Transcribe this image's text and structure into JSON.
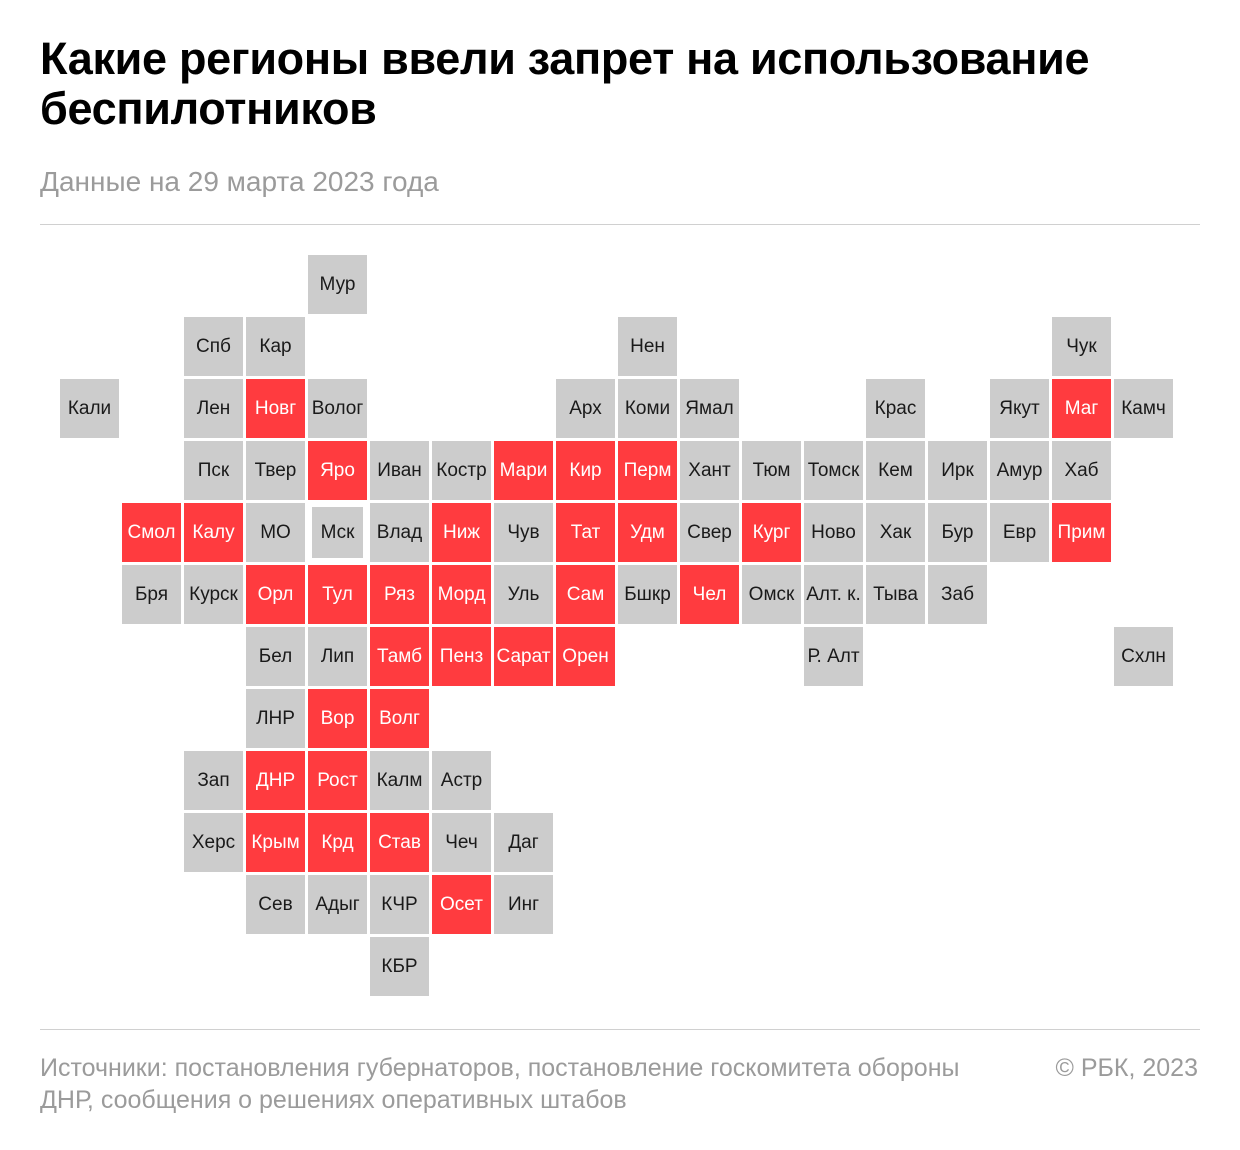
{
  "title": "Какие регионы ввели запрет на использование беспилотников",
  "subtitle": "Данные на 29 марта 2023 года",
  "colors": {
    "ban": "#ff3b3f",
    "no_ban": "#cccccc"
  },
  "tiles": [
    {
      "label": "Мур",
      "ban": false,
      "row": 0,
      "col": 4
    },
    {
      "label": "Спб",
      "ban": false,
      "row": 1,
      "col": 2
    },
    {
      "label": "Кар",
      "ban": false,
      "row": 1,
      "col": 3
    },
    {
      "label": "Нен",
      "ban": false,
      "row": 1,
      "col": 9
    },
    {
      "label": "Чук",
      "ban": false,
      "row": 1,
      "col": 16
    },
    {
      "label": "Кали",
      "ban": false,
      "row": 2,
      "col": 0
    },
    {
      "label": "Лен",
      "ban": false,
      "row": 2,
      "col": 2
    },
    {
      "label": "Новг",
      "ban": true,
      "row": 2,
      "col": 3
    },
    {
      "label": "Волог",
      "ban": false,
      "row": 2,
      "col": 4
    },
    {
      "label": "Арх",
      "ban": false,
      "row": 2,
      "col": 8
    },
    {
      "label": "Коми",
      "ban": false,
      "row": 2,
      "col": 9
    },
    {
      "label": "Ямал",
      "ban": false,
      "row": 2,
      "col": 10
    },
    {
      "label": "Крас",
      "ban": false,
      "row": 2,
      "col": 13
    },
    {
      "label": "Якут",
      "ban": false,
      "row": 2,
      "col": 15
    },
    {
      "label": "Маг",
      "ban": true,
      "row": 2,
      "col": 16
    },
    {
      "label": "Камч",
      "ban": false,
      "row": 2,
      "col": 17
    },
    {
      "label": "Пск",
      "ban": false,
      "row": 3,
      "col": 2
    },
    {
      "label": "Твер",
      "ban": false,
      "row": 3,
      "col": 3
    },
    {
      "label": "Яро",
      "ban": true,
      "row": 3,
      "col": 4
    },
    {
      "label": "Иван",
      "ban": false,
      "row": 3,
      "col": 5
    },
    {
      "label": "Костр",
      "ban": false,
      "row": 3,
      "col": 6
    },
    {
      "label": "Мари",
      "ban": true,
      "row": 3,
      "col": 7
    },
    {
      "label": "Кир",
      "ban": true,
      "row": 3,
      "col": 8
    },
    {
      "label": "Перм",
      "ban": true,
      "row": 3,
      "col": 9
    },
    {
      "label": "Хант",
      "ban": false,
      "row": 3,
      "col": 10
    },
    {
      "label": "Тюм",
      "ban": false,
      "row": 3,
      "col": 11
    },
    {
      "label": "Томск",
      "ban": false,
      "row": 3,
      "col": 12
    },
    {
      "label": "Кем",
      "ban": false,
      "row": 3,
      "col": 13
    },
    {
      "label": "Ирк",
      "ban": false,
      "row": 3,
      "col": 14
    },
    {
      "label": "Амур",
      "ban": false,
      "row": 3,
      "col": 15
    },
    {
      "label": "Хаб",
      "ban": false,
      "row": 3,
      "col": 16
    },
    {
      "label": "Смол",
      "ban": true,
      "row": 4,
      "col": 1
    },
    {
      "label": "Калу",
      "ban": true,
      "row": 4,
      "col": 2
    },
    {
      "label": "МО",
      "ban": false,
      "row": 4,
      "col": 3
    },
    {
      "label": "Мск",
      "ban": false,
      "row": 4,
      "col": 4,
      "small": true
    },
    {
      "label": "Влад",
      "ban": false,
      "row": 4,
      "col": 5
    },
    {
      "label": "Ниж",
      "ban": true,
      "row": 4,
      "col": 6
    },
    {
      "label": "Чув",
      "ban": false,
      "row": 4,
      "col": 7
    },
    {
      "label": "Тат",
      "ban": true,
      "row": 4,
      "col": 8
    },
    {
      "label": "Удм",
      "ban": true,
      "row": 4,
      "col": 9
    },
    {
      "label": "Свер",
      "ban": false,
      "row": 4,
      "col": 10
    },
    {
      "label": "Кург",
      "ban": true,
      "row": 4,
      "col": 11
    },
    {
      "label": "Ново",
      "ban": false,
      "row": 4,
      "col": 12
    },
    {
      "label": "Хак",
      "ban": false,
      "row": 4,
      "col": 13
    },
    {
      "label": "Бур",
      "ban": false,
      "row": 4,
      "col": 14
    },
    {
      "label": "Евр",
      "ban": false,
      "row": 4,
      "col": 15
    },
    {
      "label": "Прим",
      "ban": true,
      "row": 4,
      "col": 16
    },
    {
      "label": "Бря",
      "ban": false,
      "row": 5,
      "col": 1
    },
    {
      "label": "Курск",
      "ban": false,
      "row": 5,
      "col": 2
    },
    {
      "label": "Орл",
      "ban": true,
      "row": 5,
      "col": 3
    },
    {
      "label": "Тул",
      "ban": true,
      "row": 5,
      "col": 4
    },
    {
      "label": "Ряз",
      "ban": true,
      "row": 5,
      "col": 5
    },
    {
      "label": "Морд",
      "ban": true,
      "row": 5,
      "col": 6
    },
    {
      "label": "Уль",
      "ban": false,
      "row": 5,
      "col": 7
    },
    {
      "label": "Сам",
      "ban": true,
      "row": 5,
      "col": 8
    },
    {
      "label": "Бшкр",
      "ban": false,
      "row": 5,
      "col": 9
    },
    {
      "label": "Чел",
      "ban": true,
      "row": 5,
      "col": 10
    },
    {
      "label": "Омск",
      "ban": false,
      "row": 5,
      "col": 11
    },
    {
      "label": "Алт. к.",
      "ban": false,
      "row": 5,
      "col": 12
    },
    {
      "label": "Тыва",
      "ban": false,
      "row": 5,
      "col": 13
    },
    {
      "label": "Заб",
      "ban": false,
      "row": 5,
      "col": 14
    },
    {
      "label": "Бел",
      "ban": false,
      "row": 6,
      "col": 3
    },
    {
      "label": "Лип",
      "ban": false,
      "row": 6,
      "col": 4
    },
    {
      "label": "Тамб",
      "ban": true,
      "row": 6,
      "col": 5
    },
    {
      "label": "Пенз",
      "ban": true,
      "row": 6,
      "col": 6
    },
    {
      "label": "Сарат",
      "ban": true,
      "row": 6,
      "col": 7
    },
    {
      "label": "Орен",
      "ban": true,
      "row": 6,
      "col": 8
    },
    {
      "label": "Р. Алт",
      "ban": false,
      "row": 6,
      "col": 12
    },
    {
      "label": "Схлн",
      "ban": false,
      "row": 6,
      "col": 17
    },
    {
      "label": "ЛНР",
      "ban": false,
      "row": 7,
      "col": 3
    },
    {
      "label": "Вор",
      "ban": true,
      "row": 7,
      "col": 4
    },
    {
      "label": "Волг",
      "ban": true,
      "row": 7,
      "col": 5
    },
    {
      "label": "Зап",
      "ban": false,
      "row": 8,
      "col": 2
    },
    {
      "label": "ДНР",
      "ban": true,
      "row": 8,
      "col": 3
    },
    {
      "label": "Рост",
      "ban": true,
      "row": 8,
      "col": 4
    },
    {
      "label": "Калм",
      "ban": false,
      "row": 8,
      "col": 5
    },
    {
      "label": "Астр",
      "ban": false,
      "row": 8,
      "col": 6
    },
    {
      "label": "Херс",
      "ban": false,
      "row": 9,
      "col": 2
    },
    {
      "label": "Крым",
      "ban": true,
      "row": 9,
      "col": 3
    },
    {
      "label": "Крд",
      "ban": true,
      "row": 9,
      "col": 4
    },
    {
      "label": "Став",
      "ban": true,
      "row": 9,
      "col": 5
    },
    {
      "label": "Чеч",
      "ban": false,
      "row": 9,
      "col": 6
    },
    {
      "label": "Даг",
      "ban": false,
      "row": 9,
      "col": 7
    },
    {
      "label": "Сев",
      "ban": false,
      "row": 10,
      "col": 3
    },
    {
      "label": "Адыг",
      "ban": false,
      "row": 10,
      "col": 4
    },
    {
      "label": "КЧР",
      "ban": false,
      "row": 10,
      "col": 5
    },
    {
      "label": "Осет",
      "ban": true,
      "row": 10,
      "col": 6
    },
    {
      "label": "Инг",
      "ban": false,
      "row": 10,
      "col": 7
    },
    {
      "label": "КБР",
      "ban": false,
      "row": 11,
      "col": 5
    }
  ],
  "footer": {
    "sources": "Источники: постановления губернаторов, постановление госкомитета обороны ДНР, сообщения о решениях оперативных штабов",
    "copyright": "© РБК, 2023"
  }
}
